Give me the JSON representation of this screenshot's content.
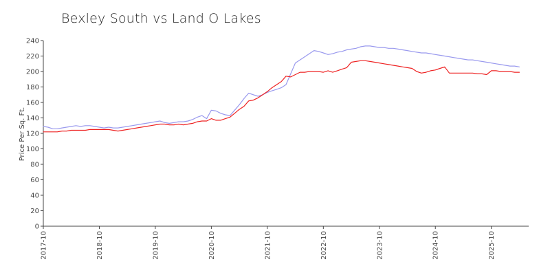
{
  "chart_data": {
    "type": "line",
    "title": "Bexley South vs Land O Lakes",
    "xlabel": "",
    "ylabel": "Price Per Sq. Ft.",
    "ylim": [
      0,
      240
    ],
    "yticks": [
      0,
      20,
      40,
      60,
      80,
      100,
      120,
      140,
      160,
      180,
      200,
      220,
      240
    ],
    "xlim": [
      "2017-10",
      "2026-06"
    ],
    "xticks": [
      "2017-10",
      "2018-10",
      "2019-10",
      "2020-10",
      "2021-10",
      "2022-10",
      "2023-10",
      "2024-10",
      "2025-10"
    ],
    "grid": false,
    "legend": "none",
    "series": [
      {
        "color": "#9999ee",
        "points": [
          [
            "2017-10",
            129
          ],
          [
            "2017-11",
            128
          ],
          [
            "2017-12",
            126
          ],
          [
            "2018-01",
            126
          ],
          [
            "2018-02",
            127
          ],
          [
            "2018-03",
            128
          ],
          [
            "2018-04",
            129
          ],
          [
            "2018-05",
            130
          ],
          [
            "2018-06",
            129
          ],
          [
            "2018-07",
            130
          ],
          [
            "2018-08",
            130
          ],
          [
            "2018-09",
            129
          ],
          [
            "2018-10",
            128
          ],
          [
            "2018-11",
            127
          ],
          [
            "2018-12",
            128
          ],
          [
            "2019-01",
            127
          ],
          [
            "2019-02",
            127
          ],
          [
            "2019-03",
            128
          ],
          [
            "2019-04",
            129
          ],
          [
            "2019-05",
            130
          ],
          [
            "2019-06",
            131
          ],
          [
            "2019-07",
            132
          ],
          [
            "2019-08",
            133
          ],
          [
            "2019-09",
            134
          ],
          [
            "2019-10",
            135
          ],
          [
            "2019-11",
            136
          ],
          [
            "2019-12",
            134
          ],
          [
            "2020-01",
            133
          ],
          [
            "2020-02",
            134
          ],
          [
            "2020-03",
            135
          ],
          [
            "2020-04",
            135
          ],
          [
            "2020-05",
            136
          ],
          [
            "2020-06",
            138
          ],
          [
            "2020-07",
            141
          ],
          [
            "2020-08",
            143
          ],
          [
            "2020-09",
            139
          ],
          [
            "2020-10",
            150
          ],
          [
            "2020-11",
            149
          ],
          [
            "2020-12",
            146
          ],
          [
            "2021-01",
            144
          ],
          [
            "2021-02",
            143
          ],
          [
            "2021-03",
            150
          ],
          [
            "2021-04",
            157
          ],
          [
            "2021-05",
            165
          ],
          [
            "2021-06",
            172
          ],
          [
            "2021-07",
            170
          ],
          [
            "2021-08",
            168
          ],
          [
            "2021-09",
            170
          ],
          [
            "2021-10",
            173
          ],
          [
            "2021-11",
            175
          ],
          [
            "2021-12",
            177
          ],
          [
            "2022-01",
            179
          ],
          [
            "2022-02",
            183
          ],
          [
            "2022-03",
            197
          ],
          [
            "2022-04",
            211
          ],
          [
            "2022-05",
            215
          ],
          [
            "2022-06",
            219
          ],
          [
            "2022-07",
            223
          ],
          [
            "2022-08",
            227
          ],
          [
            "2022-09",
            226
          ],
          [
            "2022-10",
            224
          ],
          [
            "2022-11",
            222
          ],
          [
            "2022-12",
            223
          ],
          [
            "2023-01",
            225
          ],
          [
            "2023-02",
            226
          ],
          [
            "2023-03",
            228
          ],
          [
            "2023-04",
            229
          ],
          [
            "2023-05",
            230
          ],
          [
            "2023-06",
            232
          ],
          [
            "2023-07",
            233
          ],
          [
            "2023-08",
            233
          ],
          [
            "2023-09",
            232
          ],
          [
            "2023-10",
            231
          ],
          [
            "2023-11",
            231
          ],
          [
            "2023-12",
            230
          ],
          [
            "2024-01",
            230
          ],
          [
            "2024-02",
            229
          ],
          [
            "2024-03",
            228
          ],
          [
            "2024-04",
            227
          ],
          [
            "2024-05",
            226
          ],
          [
            "2024-06",
            225
          ],
          [
            "2024-07",
            224
          ],
          [
            "2024-08",
            224
          ],
          [
            "2024-09",
            223
          ],
          [
            "2024-10",
            222
          ],
          [
            "2024-11",
            221
          ],
          [
            "2024-12",
            220
          ],
          [
            "2025-01",
            219
          ],
          [
            "2025-02",
            218
          ],
          [
            "2025-03",
            217
          ],
          [
            "2025-04",
            216
          ],
          [
            "2025-05",
            215
          ],
          [
            "2025-06",
            215
          ],
          [
            "2025-07",
            214
          ],
          [
            "2025-08",
            213
          ],
          [
            "2025-09",
            212
          ],
          [
            "2025-10",
            211
          ],
          [
            "2025-11",
            210
          ],
          [
            "2025-12",
            209
          ],
          [
            "2026-01",
            208
          ],
          [
            "2026-02",
            207
          ],
          [
            "2026-03",
            207
          ],
          [
            "2026-04",
            206
          ]
        ]
      },
      {
        "color": "#ee2222",
        "points": [
          [
            "2017-10",
            122
          ],
          [
            "2017-11",
            122
          ],
          [
            "2017-12",
            122
          ],
          [
            "2018-01",
            122
          ],
          [
            "2018-02",
            123
          ],
          [
            "2018-03",
            123
          ],
          [
            "2018-04",
            124
          ],
          [
            "2018-05",
            124
          ],
          [
            "2018-06",
            124
          ],
          [
            "2018-07",
            124
          ],
          [
            "2018-08",
            125
          ],
          [
            "2018-09",
            125
          ],
          [
            "2018-10",
            125
          ],
          [
            "2018-11",
            125
          ],
          [
            "2018-12",
            125
          ],
          [
            "2019-01",
            124
          ],
          [
            "2019-02",
            123
          ],
          [
            "2019-03",
            124
          ],
          [
            "2019-04",
            125
          ],
          [
            "2019-05",
            126
          ],
          [
            "2019-06",
            127
          ],
          [
            "2019-07",
            128
          ],
          [
            "2019-08",
            129
          ],
          [
            "2019-09",
            130
          ],
          [
            "2019-10",
            131
          ],
          [
            "2019-11",
            132
          ],
          [
            "2019-12",
            132
          ],
          [
            "2020-01",
            131
          ],
          [
            "2020-02",
            131
          ],
          [
            "2020-03",
            132
          ],
          [
            "2020-04",
            131
          ],
          [
            "2020-05",
            132
          ],
          [
            "2020-06",
            133
          ],
          [
            "2020-07",
            135
          ],
          [
            "2020-08",
            136
          ],
          [
            "2020-09",
            136
          ],
          [
            "2020-10",
            139
          ],
          [
            "2020-11",
            137
          ],
          [
            "2020-12",
            137
          ],
          [
            "2021-01",
            139
          ],
          [
            "2021-02",
            141
          ],
          [
            "2021-03",
            146
          ],
          [
            "2021-04",
            151
          ],
          [
            "2021-05",
            155
          ],
          [
            "2021-06",
            162
          ],
          [
            "2021-07",
            163
          ],
          [
            "2021-08",
            166
          ],
          [
            "2021-09",
            170
          ],
          [
            "2021-10",
            174
          ],
          [
            "2021-11",
            179
          ],
          [
            "2021-12",
            183
          ],
          [
            "2022-01",
            187
          ],
          [
            "2022-02",
            194
          ],
          [
            "2022-03",
            193
          ],
          [
            "2022-04",
            196
          ],
          [
            "2022-05",
            199
          ],
          [
            "2022-06",
            199
          ],
          [
            "2022-07",
            200
          ],
          [
            "2022-08",
            200
          ],
          [
            "2022-09",
            200
          ],
          [
            "2022-10",
            199
          ],
          [
            "2022-11",
            201
          ],
          [
            "2022-12",
            199
          ],
          [
            "2023-01",
            201
          ],
          [
            "2023-02",
            203
          ],
          [
            "2023-03",
            205
          ],
          [
            "2023-04",
            212
          ],
          [
            "2023-05",
            213
          ],
          [
            "2023-06",
            214
          ],
          [
            "2023-07",
            214
          ],
          [
            "2023-08",
            213
          ],
          [
            "2023-09",
            212
          ],
          [
            "2023-10",
            211
          ],
          [
            "2023-11",
            210
          ],
          [
            "2023-12",
            209
          ],
          [
            "2024-01",
            208
          ],
          [
            "2024-02",
            207
          ],
          [
            "2024-03",
            206
          ],
          [
            "2024-04",
            205
          ],
          [
            "2024-05",
            204
          ],
          [
            "2024-06",
            200
          ],
          [
            "2024-07",
            198
          ],
          [
            "2024-08",
            199
          ],
          [
            "2024-09",
            201
          ],
          [
            "2024-10",
            202
          ],
          [
            "2024-11",
            204
          ],
          [
            "2024-12",
            206
          ],
          [
            "2025-01",
            198
          ],
          [
            "2025-02",
            198
          ],
          [
            "2025-03",
            198
          ],
          [
            "2025-04",
            198
          ],
          [
            "2025-05",
            198
          ],
          [
            "2025-06",
            198
          ],
          [
            "2025-07",
            197
          ],
          [
            "2025-08",
            197
          ],
          [
            "2025-09",
            196
          ],
          [
            "2025-10",
            201
          ],
          [
            "2025-11",
            201
          ],
          [
            "2025-12",
            200
          ],
          [
            "2026-01",
            200
          ],
          [
            "2026-02",
            200
          ],
          [
            "2026-03",
            199
          ],
          [
            "2026-04",
            199
          ]
        ]
      }
    ]
  }
}
